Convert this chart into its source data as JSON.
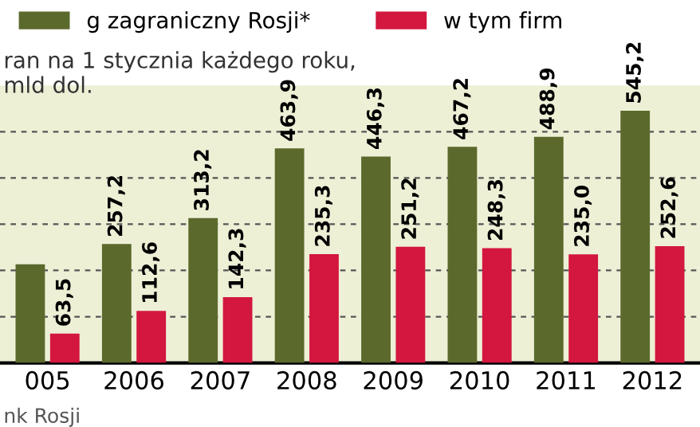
{
  "chart_data": {
    "type": "bar",
    "subtitle": "ran na 1 stycznia każdego roku,\nmld dol.",
    "annotations": [
      "nk Rosji"
    ],
    "categories": [
      "005",
      "2006",
      "2007",
      "2008",
      "2009",
      "2010",
      "2011",
      "2012"
    ],
    "series": [
      {
        "name": "g zagraniczny Rosji*",
        "color": "#5b6a2c",
        "values": [
          213.5,
          257.2,
          313.2,
          463.9,
          446.3,
          467.2,
          488.9,
          545.2
        ],
        "value_labels": [
          null,
          "257,2",
          "313,2",
          "463,9",
          "446,3",
          "467,2",
          "488,9",
          "545,2"
        ]
      },
      {
        "name": "w tym firm",
        "color": "#d3173f",
        "values": [
          63.5,
          112.6,
          142.3,
          235.3,
          251.2,
          248.3,
          235.0,
          252.6
        ],
        "value_labels": [
          "63,5",
          "112,6",
          "142,3",
          "235,3",
          "251,2",
          "248,3",
          "235,0",
          "252,6"
        ]
      }
    ],
    "ylim": [
      0,
      600
    ],
    "yticks": [
      {
        "value": 100,
        "label": null
      },
      {
        "value": 200,
        "label": null
      },
      {
        "value": 300,
        "label": null
      },
      {
        "value": 400,
        "label": null
      },
      {
        "value": 500,
        "label": null
      }
    ],
    "grid": "y",
    "legend": "top",
    "tick_labels": "x"
  }
}
